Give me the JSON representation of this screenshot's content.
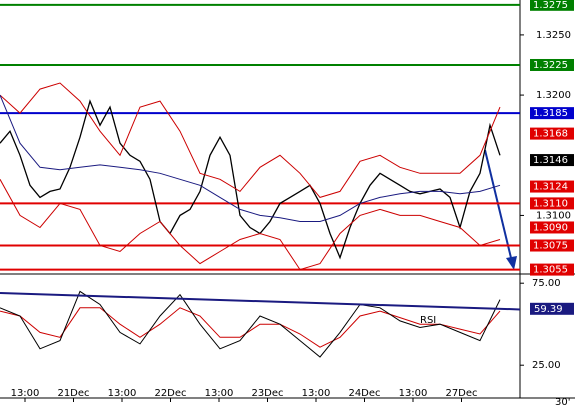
{
  "chart_data": {
    "type": "financial",
    "timeframe": "30'",
    "xticks": [
      "13:00",
      "21Dec",
      "13:00",
      "22Dec",
      "13:00",
      "23Dec",
      "13:00",
      "24Dec",
      "13:00",
      "27Dec"
    ],
    "ylim": [
      1.3053,
      1.3279
    ],
    "yticks": [
      {
        "value": 1.325,
        "label": "1.3250"
      },
      {
        "value": 1.32,
        "label": "1.3200"
      },
      {
        "value": 1.31,
        "label": "1.3100"
      }
    ],
    "levels": [
      {
        "value": 1.3275,
        "label": "1.3275",
        "color": "#008000",
        "line": true
      },
      {
        "value": 1.3225,
        "label": "1.3225",
        "color": "#008000",
        "line": true
      },
      {
        "value": 1.3185,
        "label": "1.3185",
        "color": "#0000cc",
        "line": true
      },
      {
        "value": 1.3168,
        "label": "1.3168",
        "color": "#e00000",
        "line": false
      },
      {
        "value": 1.3146,
        "label": "1.3146",
        "color": "#000000",
        "line": false
      },
      {
        "value": 1.3124,
        "label": "1.3124",
        "color": "#e00000",
        "line": false
      },
      {
        "value": 1.311,
        "label": "1.3110",
        "color": "#e00000",
        "line": true
      },
      {
        "value": 1.309,
        "label": "1.3090",
        "color": "#e00000",
        "line": false
      },
      {
        "value": 1.3075,
        "label": "1.3075",
        "color": "#e00000",
        "line": true
      },
      {
        "value": 1.3055,
        "label": "1.3055",
        "color": "#e00000",
        "line": true
      }
    ],
    "series": [
      {
        "color": "#000000",
        "values": [
          1.316,
          1.317,
          1.315,
          1.3125,
          1.3115,
          1.312,
          1.3122,
          1.314,
          1.3165,
          1.3195,
          1.3175,
          1.319,
          1.316,
          1.315,
          1.3145,
          1.313,
          1.3095,
          1.3085,
          1.31,
          1.3105,
          1.312,
          1.315,
          1.3165,
          1.315,
          1.31,
          1.309,
          1.3085,
          1.3095,
          1.311,
          1.3115,
          1.312,
          1.3125,
          1.311,
          1.3085,
          1.3065,
          1.309,
          1.311,
          1.3125,
          1.3135,
          1.313,
          1.3125,
          1.312,
          1.3118,
          1.312,
          1.3122,
          1.3115,
          1.309,
          1.312,
          1.3135,
          1.3175,
          1.315
        ]
      },
      {
        "color": "#cc0000",
        "values": [
          1.32,
          1.3185,
          1.3205,
          1.321,
          1.3195,
          1.317,
          1.315,
          1.319,
          1.3195,
          1.317,
          1.3135,
          1.313,
          1.312,
          1.314,
          1.315,
          1.3135,
          1.3115,
          1.312,
          1.3145,
          1.315,
          1.314,
          1.3135,
          1.3135,
          1.3135,
          1.315,
          1.319
        ]
      },
      {
        "color": "#cc0000",
        "values": [
          1.313,
          1.31,
          1.309,
          1.311,
          1.3105,
          1.3075,
          1.307,
          1.3085,
          1.3095,
          1.3075,
          1.306,
          1.307,
          1.308,
          1.3085,
          1.308,
          1.3055,
          1.306,
          1.3085,
          1.31,
          1.3105,
          1.31,
          1.31,
          1.3095,
          1.309,
          1.3075,
          1.308
        ]
      },
      {
        "color": "#1a1a80",
        "values": [
          1.32,
          1.316,
          1.314,
          1.3138,
          1.314,
          1.3142,
          1.314,
          1.3138,
          1.3135,
          1.313,
          1.3125,
          1.3115,
          1.3105,
          1.31,
          1.3098,
          1.3095,
          1.3095,
          1.31,
          1.311,
          1.3115,
          1.3118,
          1.312,
          1.312,
          1.3118,
          1.312,
          1.3125
        ]
      }
    ],
    "rsi": {
      "name": "RSI",
      "ylim": [
        5,
        80
      ],
      "yticks": [
        {
          "value": 75,
          "label": "75.00"
        },
        {
          "value": 25,
          "label": "25.00"
        }
      ],
      "values": [
        60,
        55,
        35,
        40,
        70,
        62,
        45,
        38,
        55,
        68,
        50,
        35,
        40,
        55,
        50,
        40,
        30,
        45,
        62,
        60,
        52,
        48,
        50,
        45,
        40,
        65
      ],
      "color": "#000000",
      "signal": [
        58,
        55,
        45,
        42,
        60,
        60,
        50,
        42,
        50,
        60,
        55,
        42,
        42,
        50,
        50,
        44,
        36,
        42,
        55,
        58,
        54,
        50,
        50,
        47,
        44,
        58
      ],
      "signal_color": "#cc0000",
      "trendline": [
        69,
        59
      ],
      "trendline_color": "#1a1a80",
      "last": 59.39
    }
  }
}
